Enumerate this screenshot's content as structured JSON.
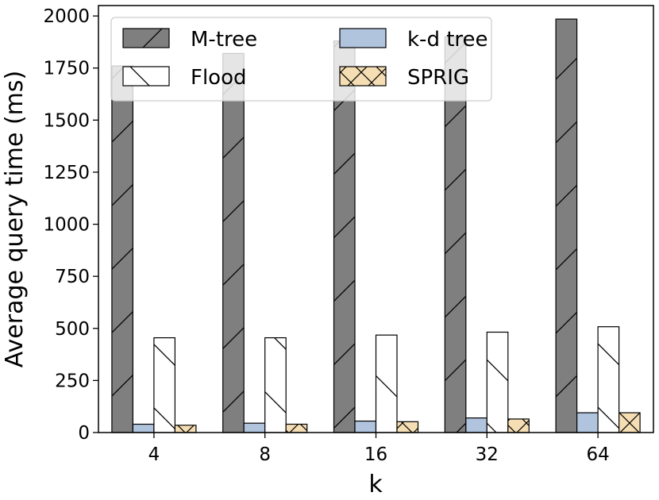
{
  "chart_data": {
    "type": "bar",
    "title": "",
    "xlabel": "k",
    "ylabel": "Average query time (ms)",
    "categories": [
      "4",
      "8",
      "16",
      "32",
      "64"
    ],
    "ylim": [
      0,
      2050
    ],
    "yticks": [
      0,
      250,
      500,
      750,
      1000,
      1250,
      1500,
      1750,
      2000
    ],
    "grid": false,
    "legend_position": "top-left",
    "series": [
      {
        "name": "M-tree",
        "values": [
          1760,
          1820,
          1880,
          1900,
          1985
        ],
        "color": "#7f7f7f",
        "hatch": "/"
      },
      {
        "name": "k-d tree",
        "values": [
          40,
          45,
          55,
          70,
          95
        ],
        "color": "#b0c4de",
        "hatch": "none"
      },
      {
        "name": "Flood",
        "values": [
          455,
          455,
          468,
          482,
          508
        ],
        "color": "#ffffff",
        "hatch": "\\"
      },
      {
        "name": "SPRIG",
        "values": [
          35,
          40,
          52,
          65,
          95
        ],
        "color": "#f5deb3",
        "hatch": "x"
      }
    ]
  }
}
